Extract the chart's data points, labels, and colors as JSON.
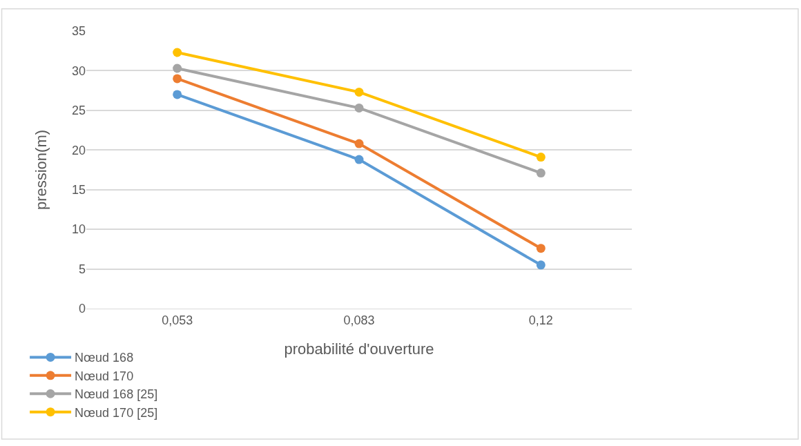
{
  "chart_data": {
    "type": "line",
    "xlabel": "probabilité d'ouverture",
    "ylabel": "pression(m)",
    "categories": [
      "0,053",
      "0,083",
      "0,12"
    ],
    "series": [
      {
        "name": "Nœud 168",
        "color": "#5b9bd5",
        "values": [
          27,
          18.8,
          5.5
        ]
      },
      {
        "name": "Nœud 170",
        "color": "#ed7d31",
        "values": [
          29,
          20.8,
          7.6
        ]
      },
      {
        "name": "Nœud 168 [25]",
        "color": "#a5a5a5",
        "values": [
          30.3,
          25.3,
          17.1
        ]
      },
      {
        "name": "Nœud 170 [25]",
        "color": "#ffc000",
        "values": [
          32.3,
          27.3,
          19.1
        ]
      }
    ],
    "ylim": [
      0,
      35
    ],
    "yticks": [
      0,
      5,
      10,
      15,
      20,
      25,
      30,
      35
    ],
    "grid": "y",
    "legend": "bottom left",
    "marker": "circle",
    "line_style": "solid"
  }
}
